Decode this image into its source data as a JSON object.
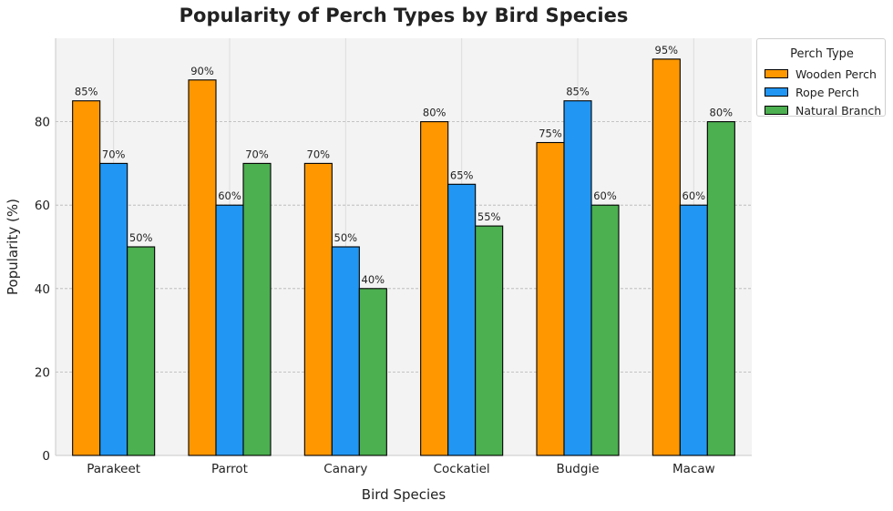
{
  "chart_data": {
    "type": "bar",
    "title": "Popularity of Perch Types by Bird Species",
    "xlabel": "Bird Species",
    "ylabel": "Popularity (%)",
    "ylim": [
      0,
      100
    ],
    "yticks": [
      0,
      20,
      40,
      60,
      80
    ],
    "grid": true,
    "legend": {
      "title": "Perch Type",
      "placement": "outside-top-right"
    },
    "categories": [
      "Parakeet",
      "Parrot",
      "Canary",
      "Cockatiel",
      "Budgie",
      "Macaw"
    ],
    "series": [
      {
        "name": "Wooden Perch",
        "color": "#FF9800",
        "values": [
          85,
          90,
          70,
          80,
          75,
          95
        ]
      },
      {
        "name": "Rope Perch",
        "color": "#2196F3",
        "values": [
          70,
          60,
          50,
          65,
          85,
          60
        ]
      },
      {
        "name": "Natural Branch",
        "color": "#4CAF50",
        "values": [
          50,
          70,
          40,
          55,
          60,
          80
        ]
      }
    ],
    "value_label_suffix": "%"
  }
}
